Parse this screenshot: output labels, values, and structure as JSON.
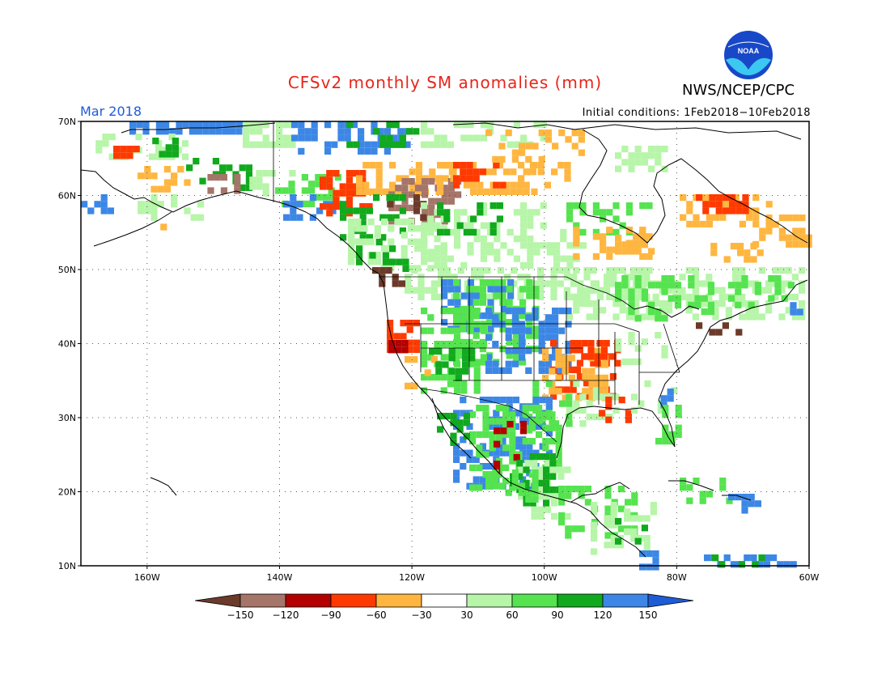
{
  "title": "CFSv2 monthly SM anomalies (mm)",
  "agency": "NWS/NCEP/CPC",
  "logo_text": "NOAA",
  "valid_month": "Mar 2018",
  "initial_conditions": "Initial conditions: 1Feb2018−10Feb2018",
  "lat_labels": [
    "70N",
    "60N",
    "50N",
    "40N",
    "30N",
    "20N",
    "10N"
  ],
  "lon_labels": [
    "160W",
    "140W",
    "120W",
    "100W",
    "80W",
    "60W"
  ],
  "colorbar": {
    "labels": [
      "−150",
      "−120",
      "−90",
      "−60",
      "−30",
      "30",
      "60",
      "90",
      "120",
      "150"
    ],
    "colors": [
      "#6b3a2a",
      "#a57569",
      "#b30000",
      "#ff3a00",
      "#ffb640",
      "#ffffff",
      "#b7f5a9",
      "#55e34f",
      "#11a91e",
      "#3c87e6",
      "#1e5cd6"
    ]
  },
  "palette": {
    "brown": "#6b3a2a",
    "lbrown": "#a57569",
    "dred": "#b30000",
    "red": "#ff3a00",
    "orange": "#ffb640",
    "lgreen": "#b7f5a9",
    "green": "#55e34f",
    "dgreen": "#11a91e",
    "blue": "#3c87e6"
  }
}
